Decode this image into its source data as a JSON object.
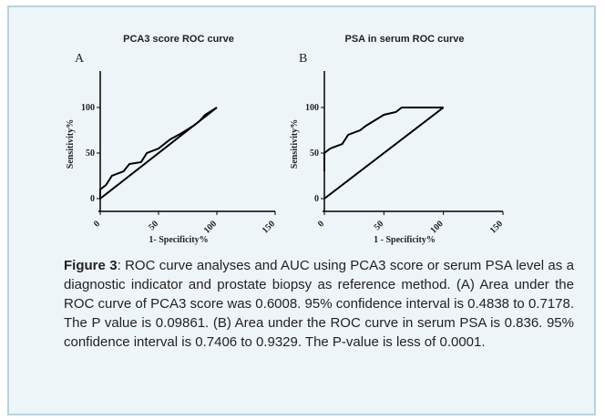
{
  "chart_data": [
    {
      "type": "line",
      "title": "PCA3 score ROC curve",
      "panel": "A",
      "xlabel": "1- Specificity%",
      "ylabel": "Sensitivity%",
      "xlim": [
        0,
        150
      ],
      "ylim": [
        0,
        140
      ],
      "xticks": [
        0,
        50,
        100,
        150
      ],
      "yticks": [
        0,
        50,
        100
      ],
      "series": [
        {
          "color": "#000000",
          "x": [
            0,
            0,
            5,
            10,
            20,
            25,
            35,
            40,
            50,
            55,
            60,
            70,
            80,
            85,
            90,
            100
          ],
          "values": [
            0,
            10,
            15,
            25,
            30,
            38,
            40,
            50,
            55,
            60,
            65,
            72,
            80,
            85,
            92,
            100
          ]
        },
        {
          "color": "#000000",
          "x": [
            0,
            100
          ],
          "values": [
            0,
            100
          ]
        }
      ]
    },
    {
      "type": "line",
      "title": "PSA in serum ROC curve",
      "panel": "B",
      "xlabel": "1 - Specificity%",
      "ylabel": "Sensitivity%",
      "xlim": [
        0,
        150
      ],
      "ylim": [
        0,
        140
      ],
      "xticks": [
        0,
        50,
        100,
        150
      ],
      "yticks": [
        0,
        50,
        100
      ],
      "series": [
        {
          "color": "#000000",
          "x": [
            0,
            0,
            5,
            15,
            20,
            30,
            35,
            45,
            50,
            60,
            65,
            100
          ],
          "values": [
            30,
            50,
            55,
            60,
            70,
            75,
            80,
            88,
            92,
            95,
            100,
            100
          ]
        },
        {
          "color": "#000000",
          "x": [
            0,
            100
          ],
          "values": [
            0,
            100
          ]
        }
      ]
    }
  ],
  "caption": {
    "label": "Figure 3",
    "text": ": ROC curve analyses and AUC using PCA3 score or serum PSA level as a diagnostic indicator and prostate biopsy as reference method. (A) Area under the ROC curve of PCA3 score was 0.6008. 95% confidence interval is 0.4838 to 0.7178. The P value is 0.09861. (B) Area under the ROC curve in serum PSA is 0.836. 95% confidence interval is 0.7406 to 0.9329. The P-value is less of 0.0001."
  }
}
